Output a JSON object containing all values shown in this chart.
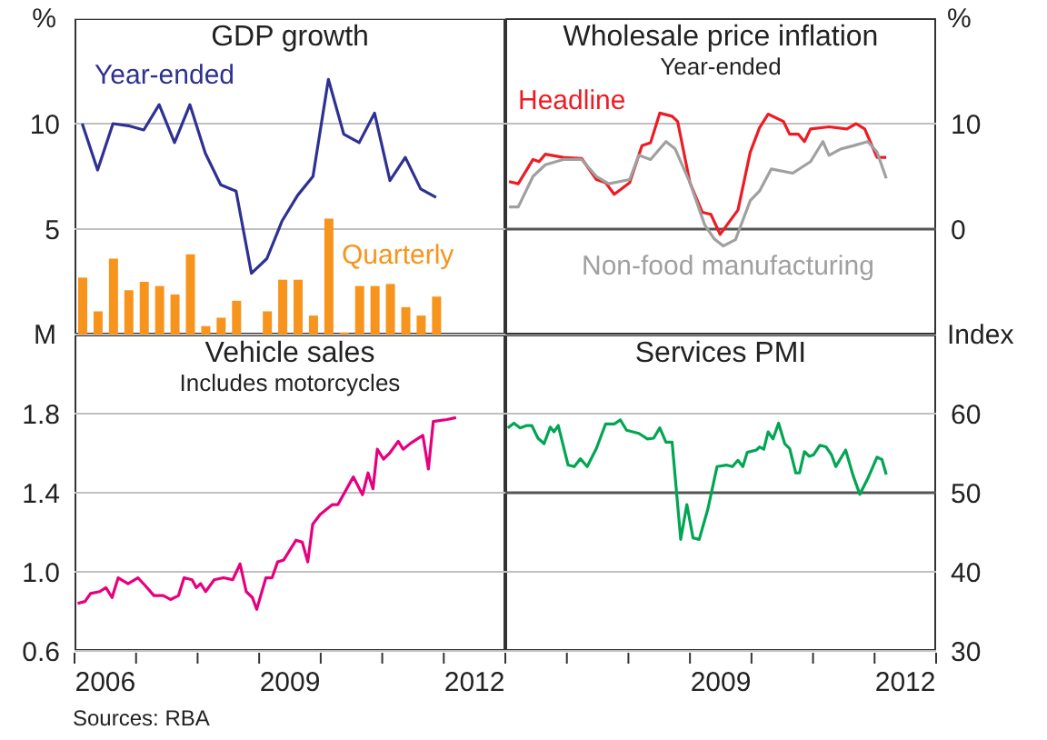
{
  "chart_data": [
    {
      "type": "line",
      "title": "GDP growth",
      "ylabel": "%",
      "xlim": [
        2006,
        2013
      ],
      "ylim": [
        0,
        15
      ],
      "yticks": [
        5,
        10
      ],
      "grid": "y",
      "tick_labels": "y",
      "x": [
        2006.125,
        2006.375,
        2006.625,
        2006.875,
        2007.125,
        2007.375,
        2007.625,
        2007.875,
        2008.125,
        2008.375,
        2008.625,
        2008.875,
        2009.125,
        2009.375,
        2009.625,
        2009.875,
        2010.125,
        2010.375,
        2010.625,
        2010.875,
        2011.125,
        2011.375,
        2011.625,
        2011.875
      ],
      "series": [
        {
          "name": "Year-ended",
          "color": "#2e3192",
          "values": [
            10.0,
            7.8,
            10.0,
            9.9,
            9.7,
            10.9,
            9.1,
            10.9,
            8.6,
            7.1,
            6.8,
            2.9,
            3.6,
            5.4,
            6.6,
            7.5,
            12.1,
            9.5,
            9.1,
            10.5,
            7.3,
            8.4,
            6.9,
            6.5
          ]
        },
        {
          "name": "Quarterly",
          "type": "bar",
          "color": "#f7941d",
          "values": [
            2.7,
            1.1,
            3.6,
            2.1,
            2.5,
            2.3,
            1.9,
            3.8,
            0.4,
            0.8,
            1.6,
            null,
            1.1,
            2.6,
            2.6,
            0.9,
            5.5,
            0.1,
            2.3,
            2.3,
            2.4,
            1.3,
            0.9,
            1.8
          ]
        }
      ]
    },
    {
      "type": "line",
      "title": "Wholesale price inflation",
      "subtitle": "Year-ended",
      "ylabel": "%",
      "xlim": [
        2006,
        2013
      ],
      "ylim": [
        -10,
        20
      ],
      "yticks": [
        0,
        10
      ],
      "tick_labels": "y",
      "ref_lines": [
        {
          "axis": "y",
          "value": 0,
          "color": "#555555"
        },
        {
          "axis": "y",
          "value": 10,
          "color": "#c0c0c0"
        }
      ],
      "series": [
        {
          "name": "Headline",
          "color": "#ed1c24",
          "x": [
            2006.06,
            2006.21,
            2006.45,
            2006.55,
            2006.65,
            2006.94,
            2007.24,
            2007.48,
            2007.63,
            2007.77,
            2008.02,
            2008.22,
            2008.36,
            2008.51,
            2008.71,
            2008.8,
            2009.0,
            2009.2,
            2009.34,
            2009.49,
            2009.64,
            2009.78,
            2009.98,
            2010.13,
            2010.27,
            2010.52,
            2010.62,
            2010.76,
            2010.86,
            2010.96,
            2011.26,
            2011.55,
            2011.7,
            2011.84,
            2012.04,
            2012.19
          ],
          "values": [
            4.5,
            4.3,
            6.6,
            6.4,
            7.1,
            6.8,
            6.7,
            4.7,
            4.4,
            3.3,
            4.4,
            7.9,
            8.2,
            11.0,
            10.7,
            10.2,
            4.4,
            1.6,
            1.4,
            -0.5,
            0.7,
            1.8,
            7.3,
            9.6,
            10.9,
            10.2,
            9.0,
            9.0,
            8.3,
            9.5,
            9.7,
            9.5,
            10.0,
            9.5,
            6.8,
            6.8
          ]
        },
        {
          "name": "Non-food manufacturing",
          "color": "#a0a0a0",
          "x": [
            2006.06,
            2006.21,
            2006.45,
            2006.65,
            2006.94,
            2007.24,
            2007.48,
            2007.68,
            2008.02,
            2008.17,
            2008.36,
            2008.61,
            2008.76,
            2009.0,
            2009.24,
            2009.39,
            2009.54,
            2009.74,
            2009.98,
            2010.13,
            2010.32,
            2010.67,
            2010.96,
            2011.16,
            2011.26,
            2011.45,
            2011.65,
            2011.89,
            2012.04,
            2012.19
          ],
          "values": [
            2.1,
            2.1,
            5.0,
            6.1,
            6.6,
            6.6,
            5.0,
            4.3,
            4.7,
            7.0,
            6.6,
            8.3,
            7.6,
            4.4,
            0.4,
            -0.9,
            -1.6,
            -1.0,
            2.7,
            3.6,
            5.7,
            5.3,
            6.4,
            8.3,
            7.0,
            7.6,
            7.9,
            8.3,
            7.3,
            4.8
          ]
        }
      ]
    },
    {
      "type": "line",
      "title": "Vehicle sales",
      "subtitle": "Includes motorcycles",
      "ylabel": "M",
      "xlim": [
        2006,
        2013
      ],
      "ylim": [
        0.6,
        2.2
      ],
      "yticks": [
        0.6,
        {
          "value": 1,
          "label": "1.0"
        },
        1.4,
        1.8
      ],
      "grid": "y",
      "xticks": [
        {
          "value": 2006,
          "label": null
        },
        {
          "value": 2006.5,
          "label": "2006"
        },
        {
          "value": 2007,
          "label": null
        },
        {
          "value": 2008,
          "label": null
        },
        {
          "value": 2009,
          "label": null
        },
        {
          "value": 2009.5,
          "label": "2009"
        },
        {
          "value": 2010,
          "label": null
        },
        {
          "value": 2011,
          "label": null
        },
        {
          "value": 2012,
          "label": null
        },
        {
          "value": 2012.5,
          "label": "2012"
        },
        {
          "value": 2013,
          "label": null
        }
      ],
      "annotations": [
        "Sources: RBA"
      ],
      "color": "#e6007e",
      "x": [
        2006.05,
        2006.17,
        2006.26,
        2006.41,
        2006.51,
        2006.61,
        2006.71,
        2006.87,
        2007.03,
        2007.15,
        2007.29,
        2007.44,
        2007.56,
        2007.69,
        2007.78,
        2007.91,
        2007.98,
        2008.05,
        2008.13,
        2008.27,
        2008.42,
        2008.57,
        2008.69,
        2008.79,
        2008.89,
        2008.96,
        2009.11,
        2009.21,
        2009.3,
        2009.4,
        2009.6,
        2009.7,
        2009.79,
        2009.87,
        2009.99,
        2010.19,
        2010.28,
        2010.53,
        2010.68,
        2010.77,
        2010.85,
        2010.92,
        2011.02,
        2011.12,
        2011.26,
        2011.34,
        2011.46,
        2011.66,
        2011.75,
        2011.83,
        2012.05,
        2012.2
      ],
      "values": [
        0.84,
        0.85,
        0.89,
        0.9,
        0.92,
        0.87,
        0.97,
        0.94,
        0.97,
        0.93,
        0.88,
        0.88,
        0.86,
        0.88,
        0.97,
        0.96,
        0.92,
        0.94,
        0.9,
        0.96,
        0.97,
        0.96,
        1.04,
        0.9,
        0.87,
        0.81,
        0.97,
        0.97,
        1.05,
        1.06,
        1.16,
        1.15,
        1.05,
        1.24,
        1.29,
        1.34,
        1.34,
        1.48,
        1.39,
        1.5,
        1.42,
        1.62,
        1.57,
        1.6,
        1.66,
        1.62,
        1.65,
        1.69,
        1.52,
        1.76,
        1.77,
        1.78
      ]
    },
    {
      "type": "line",
      "title": "Services PMI",
      "ylabel": "Index",
      "xlim": [
        2006,
        2013
      ],
      "ylim": [
        30,
        70
      ],
      "yticks": [
        30,
        40,
        50,
        60
      ],
      "grid": "y",
      "xticks": [
        {
          "value": 2006,
          "label": null
        },
        {
          "value": 2007,
          "label": null
        },
        {
          "value": 2008,
          "label": null
        },
        {
          "value": 2009,
          "label": null
        },
        {
          "value": 2009.5,
          "label": "2009"
        },
        {
          "value": 2010,
          "label": null
        },
        {
          "value": 2011,
          "label": null
        },
        {
          "value": 2012,
          "label": null
        },
        {
          "value": 2012.5,
          "label": "2012"
        },
        {
          "value": 2013,
          "label": null
        }
      ],
      "ref_lines": [
        {
          "axis": "y",
          "value": 50,
          "color": "#555555"
        }
      ],
      "color": "#00a651",
      "x": [
        2006.04,
        2006.14,
        2006.24,
        2006.35,
        2006.43,
        2006.53,
        2006.63,
        2006.73,
        2006.79,
        2006.86,
        2007.02,
        2007.12,
        2007.22,
        2007.33,
        2007.48,
        2007.63,
        2007.77,
        2007.87,
        2007.97,
        2008.17,
        2008.31,
        2008.41,
        2008.51,
        2008.61,
        2008.71,
        2008.85,
        2008.95,
        2009.05,
        2009.15,
        2009.29,
        2009.44,
        2009.59,
        2009.69,
        2009.78,
        2009.86,
        2009.93,
        2010.08,
        2010.13,
        2010.2,
        2010.27,
        2010.35,
        2010.44,
        2010.54,
        2010.62,
        2010.72,
        2010.78,
        2010.86,
        2010.94,
        2011.01,
        2011.11,
        2011.21,
        2011.3,
        2011.37,
        2011.53,
        2011.65,
        2011.76,
        2011.89,
        2012.04,
        2012.12,
        2012.19
      ],
      "values": [
        58.2,
        58.8,
        58.2,
        58.5,
        58.5,
        56.9,
        56.2,
        58.3,
        57.7,
        58.5,
        53.5,
        53.3,
        54.3,
        53.3,
        55.6,
        58.7,
        58.7,
        59.2,
        57.9,
        57.5,
        56.8,
        56.9,
        58.2,
        56.4,
        56.4,
        44.1,
        48.5,
        44.3,
        44.1,
        47.9,
        53.3,
        53.5,
        53.3,
        54.1,
        53.3,
        55.1,
        55.4,
        55.8,
        55.5,
        57.7,
        56.8,
        58.8,
        56.2,
        55.6,
        52.5,
        52.5,
        55.2,
        54.6,
        54.8,
        56.0,
        55.8,
        54.8,
        53.3,
        55.4,
        52.2,
        49.8,
        51.8,
        54.5,
        54.2,
        52.3
      ]
    }
  ]
}
